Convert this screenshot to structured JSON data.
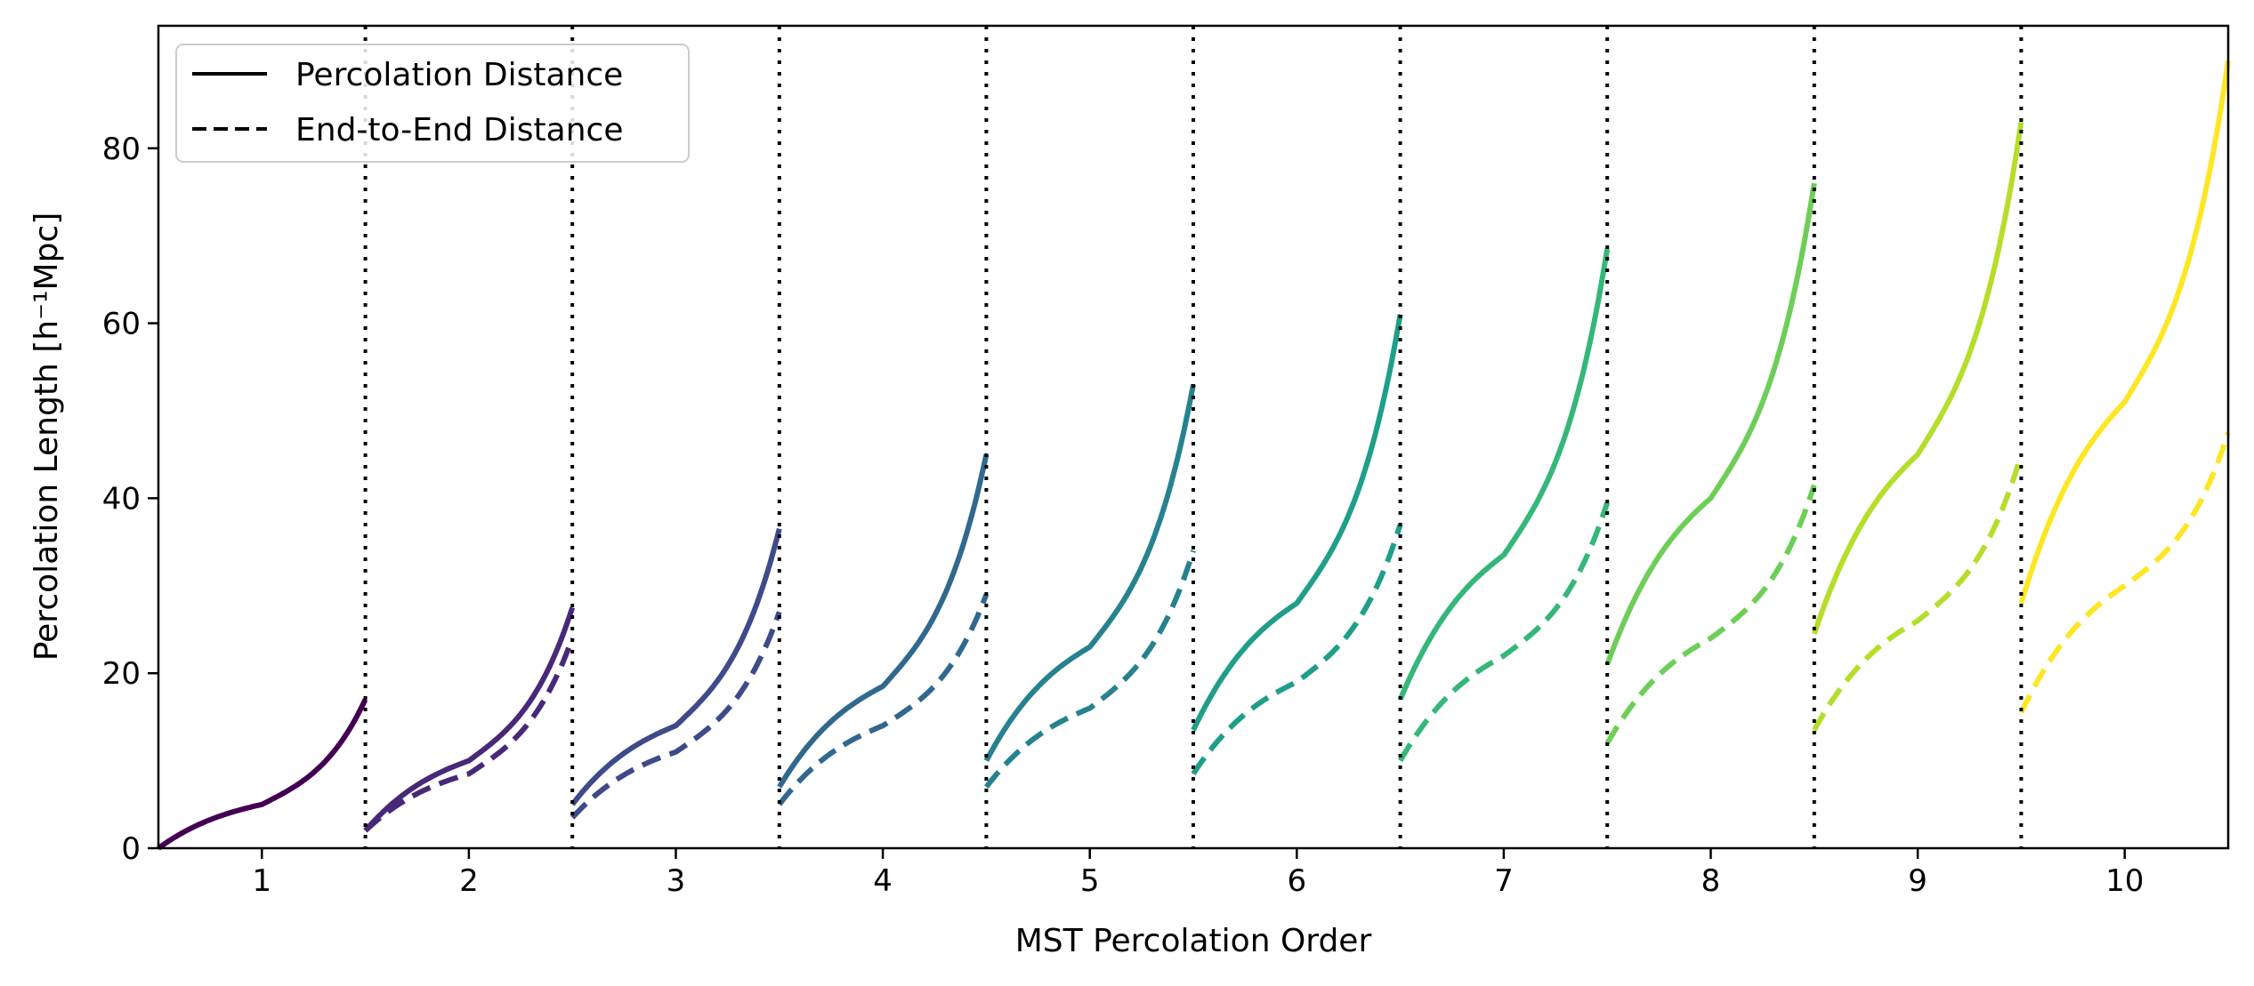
{
  "chart_data": {
    "type": "line",
    "xlabel": "MST Percolation Order",
    "ylabel": "Percolation Length [h⁻¹Mpc]",
    "xlim": [
      0.5,
      10.5
    ],
    "ylim": [
      0,
      94
    ],
    "x_ticks": [
      1,
      2,
      3,
      4,
      5,
      6,
      7,
      8,
      9,
      10
    ],
    "y_ticks": [
      0,
      20,
      40,
      60,
      80
    ],
    "grid": false,
    "legend_position": "top-left",
    "legend": [
      {
        "label": "Percolation Distance",
        "style": "solid"
      },
      {
        "label": "End-to-End Distance",
        "style": "dashed"
      }
    ],
    "dividers": {
      "x": [
        1.5,
        2.5,
        3.5,
        4.5,
        5.5,
        6.5,
        7.5,
        8.5,
        9.5
      ],
      "style": "dotted"
    },
    "series": [
      {
        "order": 1,
        "color": "#440154",
        "percolation": {
          "start": 0.0,
          "mid": 5.0,
          "end": 17.0
        },
        "end_to_end": null
      },
      {
        "order": 2,
        "color": "#482878",
        "percolation": {
          "start": 2.0,
          "mid": 10.0,
          "end": 27.5
        },
        "end_to_end": {
          "start": 2.0,
          "mid": 8.5,
          "end": 24.0
        }
      },
      {
        "order": 3,
        "color": "#3e4a89",
        "percolation": {
          "start": 5.0,
          "mid": 14.0,
          "end": 36.5
        },
        "end_to_end": {
          "start": 3.5,
          "mid": 11.0,
          "end": 27.0
        }
      },
      {
        "order": 4,
        "color": "#31688e",
        "percolation": {
          "start": 7.0,
          "mid": 18.5,
          "end": 45.0
        },
        "end_to_end": {
          "start": 5.0,
          "mid": 14.0,
          "end": 29.0
        }
      },
      {
        "order": 5,
        "color": "#26828e",
        "percolation": {
          "start": 10.0,
          "mid": 23.0,
          "end": 53.0
        },
        "end_to_end": {
          "start": 7.0,
          "mid": 16.0,
          "end": 34.0
        }
      },
      {
        "order": 6,
        "color": "#1f9e89",
        "percolation": {
          "start": 13.5,
          "mid": 28.0,
          "end": 61.0
        },
        "end_to_end": {
          "start": 8.5,
          "mid": 19.0,
          "end": 37.0
        }
      },
      {
        "order": 7,
        "color": "#35b779",
        "percolation": {
          "start": 17.0,
          "mid": 33.5,
          "end": 68.5
        },
        "end_to_end": {
          "start": 10.0,
          "mid": 22.0,
          "end": 39.5
        }
      },
      {
        "order": 8,
        "color": "#6ece58",
        "percolation": {
          "start": 21.0,
          "mid": 40.0,
          "end": 76.0
        },
        "end_to_end": {
          "start": 12.0,
          "mid": 24.0,
          "end": 41.5
        }
      },
      {
        "order": 9,
        "color": "#b5de2b",
        "percolation": {
          "start": 24.5,
          "mid": 45.0,
          "end": 83.0
        },
        "end_to_end": {
          "start": 13.5,
          "mid": 26.0,
          "end": 45.0
        }
      },
      {
        "order": 10,
        "color": "#fde725",
        "percolation": {
          "start": 28.0,
          "mid": 51.0,
          "end": 90.0
        },
        "end_to_end": {
          "start": 15.5,
          "mid": 30.0,
          "end": 47.5
        }
      }
    ]
  }
}
